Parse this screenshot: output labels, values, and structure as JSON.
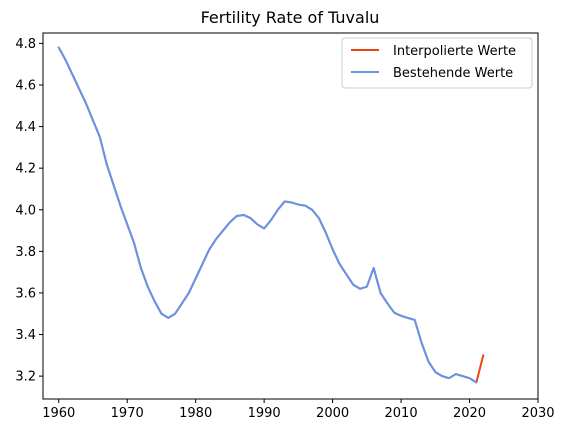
{
  "chart_data": {
    "type": "line",
    "title": "Fertility Rate of Tuvalu",
    "xlabel": "",
    "ylabel": "",
    "xlim": [
      1957.7,
      2030
    ],
    "ylim": [
      3.09,
      4.85
    ],
    "xticks": [
      1960,
      1970,
      1980,
      1990,
      2000,
      2010,
      2020,
      2030
    ],
    "yticks": [
      3.2,
      3.4,
      3.6,
      3.8,
      4.0,
      4.2,
      4.4,
      4.6,
      4.8
    ],
    "grid": false,
    "legend_position": "top-right",
    "series": [
      {
        "name": "Interpolierte Werte",
        "color": "#ee4411",
        "x": [
          1960,
          1961,
          1962,
          1963,
          1964,
          1965,
          1966,
          1967,
          1968,
          1969,
          1970,
          1971,
          1972,
          1973,
          1974,
          1975,
          1976,
          1977,
          1978,
          1979,
          1980,
          1981,
          1982,
          1983,
          1984,
          1985,
          1986,
          1987,
          1988,
          1989,
          1990,
          1991,
          1992,
          1993,
          1994,
          1995,
          1996,
          1997,
          1998,
          1999,
          2000,
          2001,
          2002,
          2003,
          2004,
          2005,
          2006,
          2007,
          2008,
          2009,
          2010,
          2011,
          2012,
          2013,
          2014,
          2015,
          2016,
          2017,
          2018,
          2019,
          2020,
          2021,
          2022
        ],
        "values": [
          4.78,
          4.72,
          4.65,
          4.58,
          4.51,
          4.43,
          4.35,
          4.22,
          4.12,
          4.02,
          3.93,
          3.84,
          3.72,
          3.63,
          3.56,
          3.5,
          3.48,
          3.5,
          3.55,
          3.6,
          3.67,
          3.74,
          3.81,
          3.86,
          3.9,
          3.94,
          3.97,
          3.975,
          3.96,
          3.93,
          3.91,
          3.95,
          4.0,
          4.04,
          4.035,
          4.025,
          4.02,
          4.0,
          3.96,
          3.89,
          3.81,
          3.74,
          3.69,
          3.64,
          3.62,
          3.63,
          3.72,
          3.6,
          3.55,
          3.505,
          3.49,
          3.48,
          3.47,
          3.36,
          3.27,
          3.22,
          3.2,
          3.19,
          3.21,
          3.2,
          3.19,
          3.17,
          3.3
        ]
      },
      {
        "name": "Bestehende Werte",
        "color": "#6495ed",
        "x": [
          1960,
          1961,
          1962,
          1963,
          1964,
          1965,
          1966,
          1967,
          1968,
          1969,
          1970,
          1971,
          1972,
          1973,
          1974,
          1975,
          1976,
          1977,
          1978,
          1979,
          1980,
          1981,
          1982,
          1983,
          1984,
          1985,
          1986,
          1987,
          1988,
          1989,
          1990,
          1991,
          1992,
          1993,
          1994,
          1995,
          1996,
          1997,
          1998,
          1999,
          2000,
          2001,
          2002,
          2003,
          2004,
          2005,
          2006,
          2007,
          2008,
          2009,
          2010,
          2011,
          2012,
          2013,
          2014,
          2015,
          2016,
          2017,
          2018,
          2019,
          2020,
          2021
        ],
        "values": [
          4.78,
          4.72,
          4.65,
          4.58,
          4.51,
          4.43,
          4.35,
          4.22,
          4.12,
          4.02,
          3.93,
          3.84,
          3.72,
          3.63,
          3.56,
          3.5,
          3.48,
          3.5,
          3.55,
          3.6,
          3.67,
          3.74,
          3.81,
          3.86,
          3.9,
          3.94,
          3.97,
          3.975,
          3.96,
          3.93,
          3.91,
          3.95,
          4.0,
          4.04,
          4.035,
          4.025,
          4.02,
          4.0,
          3.96,
          3.89,
          3.81,
          3.74,
          3.69,
          3.64,
          3.62,
          3.63,
          3.72,
          3.6,
          3.55,
          3.505,
          3.49,
          3.48,
          3.47,
          3.36,
          3.27,
          3.22,
          3.2,
          3.19,
          3.21,
          3.2,
          3.19,
          3.17
        ]
      }
    ]
  }
}
